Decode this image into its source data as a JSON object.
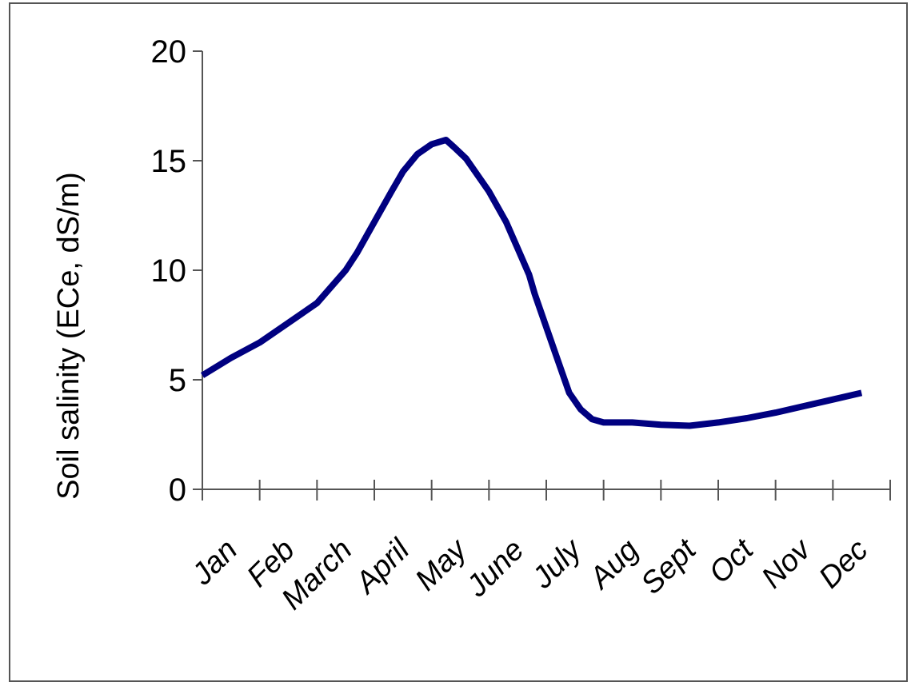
{
  "chart_data": {
    "type": "line",
    "title": "",
    "xlabel": "",
    "ylabel": "Soil salinity (ECe, dS/m)",
    "ylim": [
      0,
      20
    ],
    "yticks": [
      0,
      5,
      10,
      15,
      20
    ],
    "grid": false,
    "categories": [
      "Jan",
      "Feb",
      "March",
      "April",
      "May",
      "June",
      "July",
      "Aug",
      "Sept",
      "Oct",
      "Nov",
      "Dec"
    ],
    "series": [
      {
        "color": "#000080",
        "points": [
          {
            "x": 0.0,
            "y": 5.2
          },
          {
            "x": 0.5,
            "y": 6.0
          },
          {
            "x": 1.0,
            "y": 6.7
          },
          {
            "x": 1.5,
            "y": 7.6
          },
          {
            "x": 2.0,
            "y": 8.5
          },
          {
            "x": 2.5,
            "y": 10.0
          },
          {
            "x": 2.7,
            "y": 10.8
          },
          {
            "x": 3.0,
            "y": 12.2
          },
          {
            "x": 3.3,
            "y": 13.6
          },
          {
            "x": 3.5,
            "y": 14.5
          },
          {
            "x": 3.75,
            "y": 15.3
          },
          {
            "x": 4.0,
            "y": 15.75
          },
          {
            "x": 4.25,
            "y": 15.95
          },
          {
            "x": 4.4,
            "y": 15.6
          },
          {
            "x": 4.6,
            "y": 15.1
          },
          {
            "x": 5.0,
            "y": 13.6
          },
          {
            "x": 5.3,
            "y": 12.2
          },
          {
            "x": 5.5,
            "y": 11.0
          },
          {
            "x": 5.7,
            "y": 9.8
          },
          {
            "x": 5.8,
            "y": 8.9
          },
          {
            "x": 6.0,
            "y": 7.4
          },
          {
            "x": 6.2,
            "y": 5.9
          },
          {
            "x": 6.4,
            "y": 4.4
          },
          {
            "x": 6.6,
            "y": 3.65
          },
          {
            "x": 6.8,
            "y": 3.2
          },
          {
            "x": 7.0,
            "y": 3.05
          },
          {
            "x": 7.5,
            "y": 3.05
          },
          {
            "x": 8.0,
            "y": 2.95
          },
          {
            "x": 8.5,
            "y": 2.9
          },
          {
            "x": 9.0,
            "y": 3.05
          },
          {
            "x": 9.5,
            "y": 3.25
          },
          {
            "x": 10.0,
            "y": 3.5
          },
          {
            "x": 10.5,
            "y": 3.8
          },
          {
            "x": 11.0,
            "y": 4.1
          },
          {
            "x": 11.5,
            "y": 4.4
          }
        ]
      }
    ]
  }
}
